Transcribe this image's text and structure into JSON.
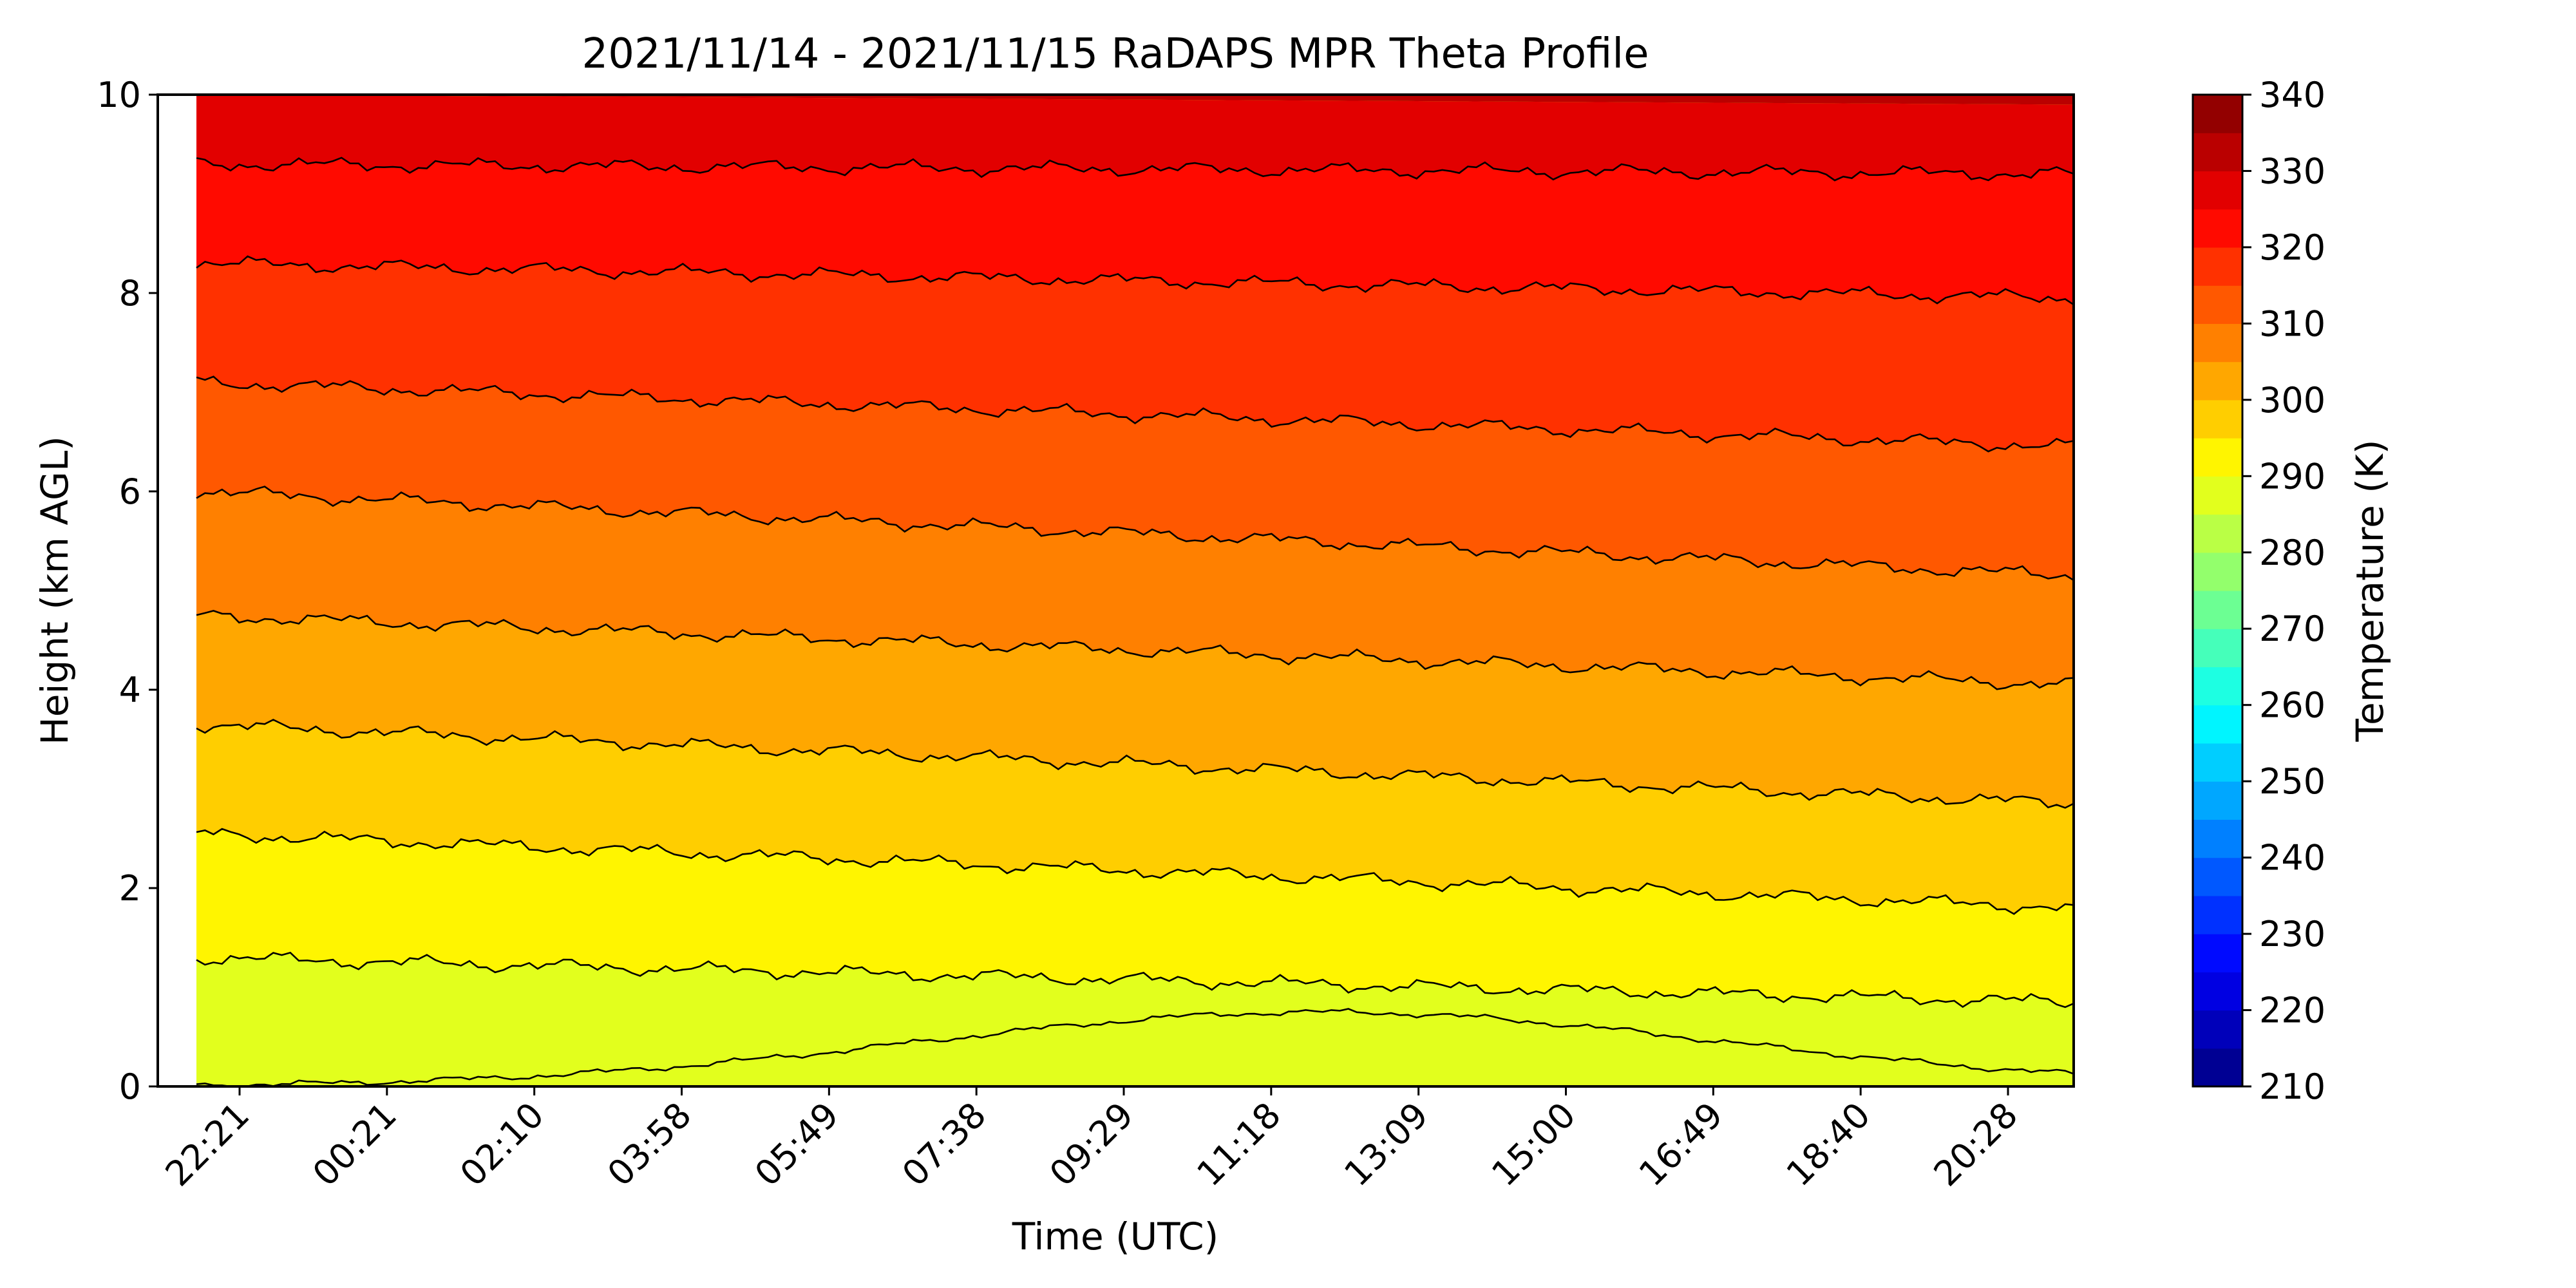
{
  "chart_data": {
    "type": "heatmap",
    "title": "2021/11/14 - 2021/11/15 RaDAPS MPR Theta Profile",
    "xlabel": "Time (UTC)",
    "ylabel": "Height (km AGL)",
    "x_tick_labels": [
      "22:21",
      "00:21",
      "02:10",
      "03:58",
      "05:49",
      "07:38",
      "09:29",
      "11:18",
      "13:09",
      "15:00",
      "16:49",
      "18:40",
      "20:28"
    ],
    "y_ticks": [
      0,
      2,
      4,
      6,
      8,
      10
    ],
    "ylim": [
      0,
      10
    ],
    "colorbar": {
      "label": "Temperature (K)",
      "levels": [
        210,
        215,
        220,
        225,
        230,
        235,
        240,
        245,
        250,
        255,
        260,
        265,
        270,
        275,
        280,
        285,
        290,
        295,
        300,
        305,
        310,
        315,
        320,
        325,
        330,
        335,
        340
      ],
      "tick_labels": [
        210,
        220,
        230,
        240,
        250,
        260,
        270,
        280,
        290,
        300,
        310,
        320,
        330,
        340
      ],
      "colormap": "jet"
    },
    "isotherms": [
      {
        "level": 285,
        "height_start": 0.0,
        "height_end": 0.5
      },
      {
        "level": 290,
        "height_start": 1.3,
        "height_end": 0.85
      },
      {
        "level": 295,
        "height_start": 2.55,
        "height_end": 1.8
      },
      {
        "level": 300,
        "height_start": 3.65,
        "height_end": 2.85
      },
      {
        "level": 305,
        "height_start": 4.75,
        "height_end": 4.05
      },
      {
        "level": 310,
        "height_start": 6.0,
        "height_end": 5.15
      },
      {
        "level": 315,
        "height_start": 7.1,
        "height_end": 6.45
      },
      {
        "level": 320,
        "height_start": 8.3,
        "height_end": 7.95
      },
      {
        "level": 325,
        "height_start": 9.3,
        "height_end": 9.2
      },
      {
        "level": 330,
        "height_start": 10.0,
        "height_end": 9.9
      }
    ],
    "grid": false
  }
}
